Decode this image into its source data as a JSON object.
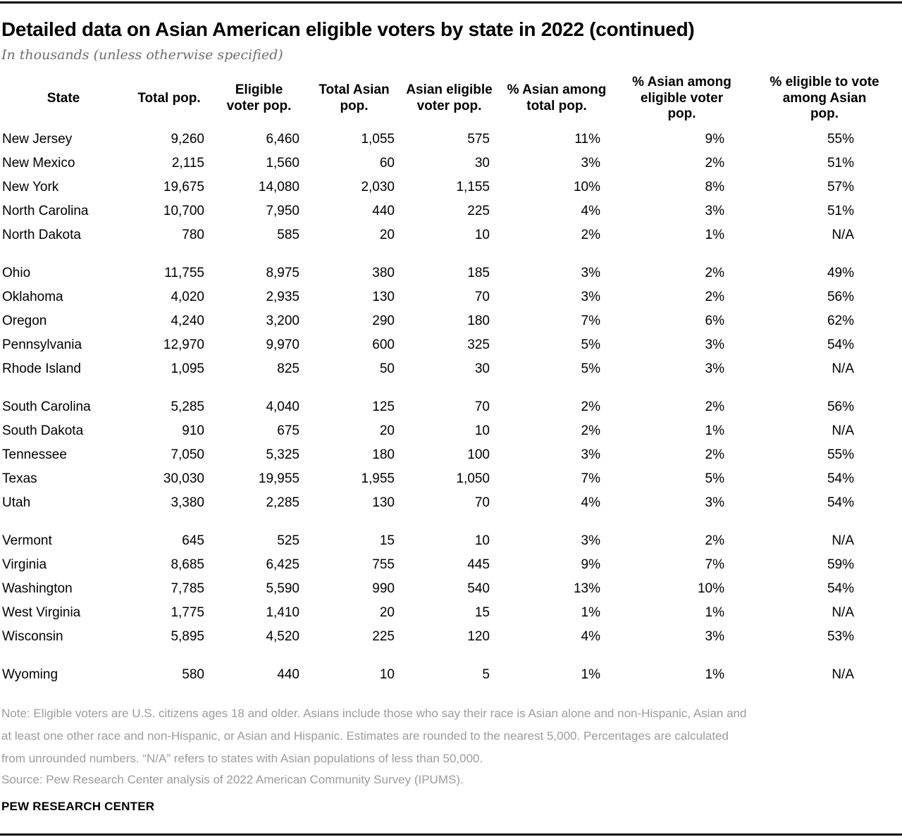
{
  "chart_data": {
    "type": "table",
    "title": "Detailed data on Asian American eligible voters by state in 2022 (continued)",
    "subtitle": "In thousands (unless otherwise specified)",
    "columns": [
      "State",
      "Total pop.",
      "Eligible\nvoter pop.",
      "Total Asian\npop.",
      "Asian eligible\nvoter pop.",
      "% Asian among\ntotal pop.",
      "% Asian among\neligible voter\npop.",
      "% eligible to vote\namong Asian\npop."
    ],
    "groups": [
      [
        [
          "New Jersey",
          "9,260",
          "6,460",
          "1,055",
          "575",
          "11%",
          "9%",
          "55%"
        ],
        [
          "New Mexico",
          "2,115",
          "1,560",
          "60",
          "30",
          "3%",
          "2%",
          "51%"
        ],
        [
          "New York",
          "19,675",
          "14,080",
          "2,030",
          "1,155",
          "10%",
          "8%",
          "57%"
        ],
        [
          "North Carolina",
          "10,700",
          "7,950",
          "440",
          "225",
          "4%",
          "3%",
          "51%"
        ],
        [
          "North Dakota",
          "780",
          "585",
          "20",
          "10",
          "2%",
          "1%",
          "N/A"
        ]
      ],
      [
        [
          "Ohio",
          "11,755",
          "8,975",
          "380",
          "185",
          "3%",
          "2%",
          "49%"
        ],
        [
          "Oklahoma",
          "4,020",
          "2,935",
          "130",
          "70",
          "3%",
          "2%",
          "56%"
        ],
        [
          "Oregon",
          "4,240",
          "3,200",
          "290",
          "180",
          "7%",
          "6%",
          "62%"
        ],
        [
          "Pennsylvania",
          "12,970",
          "9,970",
          "600",
          "325",
          "5%",
          "3%",
          "54%"
        ],
        [
          "Rhode Island",
          "1,095",
          "825",
          "50",
          "30",
          "5%",
          "3%",
          "N/A"
        ]
      ],
      [
        [
          "South Carolina",
          "5,285",
          "4,040",
          "125",
          "70",
          "2%",
          "2%",
          "56%"
        ],
        [
          "South Dakota",
          "910",
          "675",
          "20",
          "10",
          "2%",
          "1%",
          "N/A"
        ],
        [
          "Tennessee",
          "7,050",
          "5,325",
          "180",
          "100",
          "3%",
          "2%",
          "55%"
        ],
        [
          "Texas",
          "30,030",
          "19,955",
          "1,955",
          "1,050",
          "7%",
          "5%",
          "54%"
        ],
        [
          "Utah",
          "3,380",
          "2,285",
          "130",
          "70",
          "4%",
          "3%",
          "54%"
        ]
      ],
      [
        [
          "Vermont",
          "645",
          "525",
          "15",
          "10",
          "3%",
          "2%",
          "N/A"
        ],
        [
          "Virginia",
          "8,685",
          "6,425",
          "755",
          "445",
          "9%",
          "7%",
          "59%"
        ],
        [
          "Washington",
          "7,785",
          "5,590",
          "990",
          "540",
          "13%",
          "10%",
          "54%"
        ],
        [
          "West Virginia",
          "1,775",
          "1,410",
          "20",
          "15",
          "1%",
          "1%",
          "N/A"
        ],
        [
          "Wisconsin",
          "5,895",
          "4,520",
          "225",
          "120",
          "4%",
          "3%",
          "53%"
        ]
      ],
      [
        [
          "Wyoming",
          "580",
          "440",
          "10",
          "5",
          "1%",
          "1%",
          "N/A"
        ]
      ]
    ]
  },
  "footer": {
    "note": "Note: Eligible voters are U.S. citizens ages 18 and older. Asians include those who say their race is Asian alone and non-Hispanic, Asian and\nat least one other race and non-Hispanic, or Asian and Hispanic. Estimates are rounded to the nearest 5,000. Percentages are calculated\nfrom unrounded numbers. “N/A” refers to states with Asian populations of less than 50,000.",
    "source": "Source: Pew Research Center analysis of 2022 American Community Survey (IPUMS).",
    "brand": "PEW RESEARCH CENTER"
  }
}
